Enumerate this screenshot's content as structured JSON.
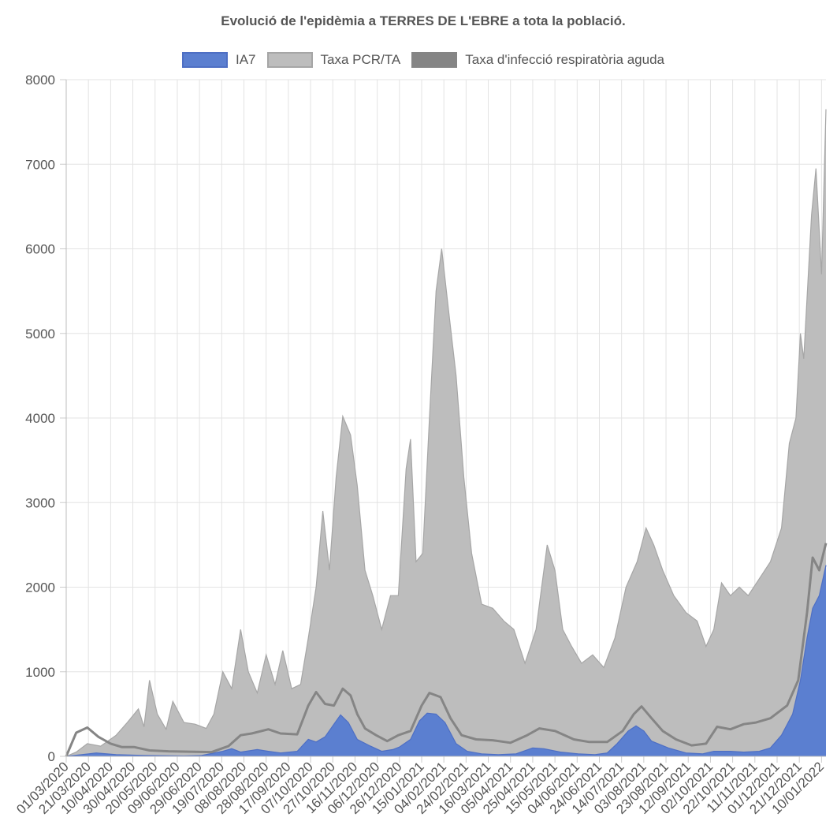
{
  "chart_data": {
    "type": "area",
    "title": "Evolució de l'epidèmia a TERRES DE L'EBRE a tota la població.",
    "xlabel": "",
    "ylabel": "",
    "ylim": [
      0,
      8000
    ],
    "y_ticks": [
      0,
      1000,
      2000,
      3000,
      4000,
      5000,
      6000,
      7000,
      8000
    ],
    "x_tick_labels": [
      "01/03/2020",
      "21/03/2020",
      "10/04/2020",
      "30/04/2020",
      "20/05/2020",
      "09/06/2020",
      "29/06/2020",
      "19/07/2020",
      "08/08/2020",
      "28/08/2020",
      "17/09/2020",
      "07/10/2020",
      "27/10/2020",
      "16/11/2020",
      "06/12/2020",
      "26/12/2020",
      "15/01/2021",
      "04/02/2021",
      "24/02/2021",
      "16/03/2021",
      "05/04/2021",
      "25/04/2021",
      "15/05/2021",
      "04/06/2021",
      "24/06/2021",
      "14/07/2021",
      "03/08/2021",
      "23/08/2021",
      "12/09/2021",
      "02/10/2021",
      "22/10/2021",
      "11/11/2021",
      "01/12/2021",
      "21/12/2021",
      "10/01/2022"
    ],
    "x_start": "2020-03-01",
    "x_end": "2022-01-14",
    "grid": true,
    "legend_position": "top",
    "series": [
      {
        "name": "IA7",
        "kind": "filled-area",
        "fill": "#5b7fd0",
        "stroke": "#4e6fc4",
        "points": [
          [
            "2020-03-01",
            0
          ],
          [
            "2020-03-15",
            20
          ],
          [
            "2020-03-28",
            40
          ],
          [
            "2020-04-15",
            20
          ],
          [
            "2020-05-10",
            10
          ],
          [
            "2020-06-15",
            5
          ],
          [
            "2020-07-01",
            10
          ],
          [
            "2020-07-20",
            60
          ],
          [
            "2020-07-28",
            90
          ],
          [
            "2020-08-05",
            50
          ],
          [
            "2020-08-20",
            80
          ],
          [
            "2020-08-30",
            60
          ],
          [
            "2020-09-10",
            40
          ],
          [
            "2020-09-25",
            60
          ],
          [
            "2020-10-05",
            200
          ],
          [
            "2020-10-12",
            170
          ],
          [
            "2020-10-20",
            230
          ],
          [
            "2020-10-28",
            380
          ],
          [
            "2020-11-03",
            490
          ],
          [
            "2020-11-10",
            400
          ],
          [
            "2020-11-18",
            200
          ],
          [
            "2020-11-30",
            120
          ],
          [
            "2020-12-10",
            60
          ],
          [
            "2020-12-20",
            80
          ],
          [
            "2020-12-26",
            110
          ],
          [
            "2021-01-05",
            200
          ],
          [
            "2021-01-13",
            420
          ],
          [
            "2021-01-20",
            510
          ],
          [
            "2021-01-28",
            500
          ],
          [
            "2021-02-05",
            400
          ],
          [
            "2021-02-15",
            150
          ],
          [
            "2021-02-25",
            60
          ],
          [
            "2021-03-10",
            30
          ],
          [
            "2021-03-25",
            20
          ],
          [
            "2021-04-10",
            30
          ],
          [
            "2021-04-25",
            100
          ],
          [
            "2021-05-05",
            90
          ],
          [
            "2021-05-20",
            50
          ],
          [
            "2021-06-05",
            30
          ],
          [
            "2021-06-20",
            20
          ],
          [
            "2021-07-01",
            40
          ],
          [
            "2021-07-10",
            150
          ],
          [
            "2021-07-20",
            300
          ],
          [
            "2021-07-27",
            360
          ],
          [
            "2021-08-03",
            300
          ],
          [
            "2021-08-10",
            180
          ],
          [
            "2021-08-25",
            100
          ],
          [
            "2021-09-10",
            40
          ],
          [
            "2021-09-25",
            30
          ],
          [
            "2021-10-05",
            60
          ],
          [
            "2021-10-20",
            60
          ],
          [
            "2021-11-01",
            50
          ],
          [
            "2021-11-15",
            60
          ],
          [
            "2021-11-25",
            100
          ],
          [
            "2021-12-05",
            250
          ],
          [
            "2021-12-15",
            500
          ],
          [
            "2021-12-22",
            900
          ],
          [
            "2021-12-28",
            1400
          ],
          [
            "2022-01-02",
            1750
          ],
          [
            "2022-01-08",
            1900
          ],
          [
            "2022-01-14",
            2260
          ]
        ]
      },
      {
        "name": "Taxa PCR/TA",
        "kind": "filled-area",
        "fill": "#bdbdbd",
        "stroke": "#a6a6a6",
        "points": [
          [
            "2020-03-01",
            0
          ],
          [
            "2020-03-10",
            50
          ],
          [
            "2020-03-20",
            150
          ],
          [
            "2020-04-01",
            120
          ],
          [
            "2020-04-15",
            250
          ],
          [
            "2020-04-25",
            400
          ],
          [
            "2020-05-05",
            560
          ],
          [
            "2020-05-10",
            350
          ],
          [
            "2020-05-15",
            900
          ],
          [
            "2020-05-22",
            500
          ],
          [
            "2020-05-30",
            320
          ],
          [
            "2020-06-05",
            650
          ],
          [
            "2020-06-15",
            400
          ],
          [
            "2020-06-25",
            380
          ],
          [
            "2020-07-05",
            330
          ],
          [
            "2020-07-12",
            500
          ],
          [
            "2020-07-20",
            1000
          ],
          [
            "2020-07-28",
            800
          ],
          [
            "2020-08-05",
            1500
          ],
          [
            "2020-08-12",
            1000
          ],
          [
            "2020-08-20",
            750
          ],
          [
            "2020-08-28",
            1200
          ],
          [
            "2020-09-05",
            850
          ],
          [
            "2020-09-12",
            1250
          ],
          [
            "2020-09-20",
            800
          ],
          [
            "2020-09-28",
            850
          ],
          [
            "2020-10-05",
            1400
          ],
          [
            "2020-10-12",
            2000
          ],
          [
            "2020-10-18",
            2900
          ],
          [
            "2020-10-24",
            2200
          ],
          [
            "2020-10-30",
            3300
          ],
          [
            "2020-11-05",
            4020
          ],
          [
            "2020-11-12",
            3800
          ],
          [
            "2020-11-18",
            3200
          ],
          [
            "2020-11-25",
            2200
          ],
          [
            "2020-12-02",
            1900
          ],
          [
            "2020-12-10",
            1500
          ],
          [
            "2020-12-18",
            1900
          ],
          [
            "2020-12-25",
            1900
          ],
          [
            "2021-01-01",
            3400
          ],
          [
            "2021-01-05",
            3750
          ],
          [
            "2021-01-10",
            2300
          ],
          [
            "2021-01-16",
            2400
          ],
          [
            "2021-01-22",
            4000
          ],
          [
            "2021-01-28",
            5500
          ],
          [
            "2021-02-02",
            6000
          ],
          [
            "2021-02-08",
            5300
          ],
          [
            "2021-02-15",
            4500
          ],
          [
            "2021-02-22",
            3300
          ],
          [
            "2021-03-01",
            2400
          ],
          [
            "2021-03-10",
            1800
          ],
          [
            "2021-03-20",
            1750
          ],
          [
            "2021-03-30",
            1600
          ],
          [
            "2021-04-08",
            1500
          ],
          [
            "2021-04-18",
            1100
          ],
          [
            "2021-04-28",
            1500
          ],
          [
            "2021-05-08",
            2500
          ],
          [
            "2021-05-15",
            2200
          ],
          [
            "2021-05-22",
            1500
          ],
          [
            "2021-05-30",
            1300
          ],
          [
            "2021-06-08",
            1100
          ],
          [
            "2021-06-18",
            1200
          ],
          [
            "2021-06-28",
            1050
          ],
          [
            "2021-07-08",
            1400
          ],
          [
            "2021-07-18",
            2000
          ],
          [
            "2021-07-28",
            2300
          ],
          [
            "2021-08-05",
            2700
          ],
          [
            "2021-08-12",
            2500
          ],
          [
            "2021-08-20",
            2200
          ],
          [
            "2021-08-30",
            1900
          ],
          [
            "2021-09-10",
            1700
          ],
          [
            "2021-09-20",
            1600
          ],
          [
            "2021-09-28",
            1300
          ],
          [
            "2021-10-05",
            1500
          ],
          [
            "2021-10-12",
            2050
          ],
          [
            "2021-10-20",
            1900
          ],
          [
            "2021-10-28",
            2000
          ],
          [
            "2021-11-05",
            1900
          ],
          [
            "2021-11-15",
            2100
          ],
          [
            "2021-11-25",
            2300
          ],
          [
            "2021-12-05",
            2700
          ],
          [
            "2021-12-12",
            3700
          ],
          [
            "2021-12-18",
            4000
          ],
          [
            "2021-12-22",
            5000
          ],
          [
            "2021-12-25",
            4700
          ],
          [
            "2022-01-01",
            6400
          ],
          [
            "2022-01-05",
            6950
          ],
          [
            "2022-01-10",
            5700
          ],
          [
            "2022-01-14",
            7650
          ]
        ]
      },
      {
        "name": "Taxa d'infecció respiratòria aguda",
        "kind": "line",
        "stroke": "#858585",
        "legend_fill": "#858585",
        "points": [
          [
            "2020-03-01",
            0
          ],
          [
            "2020-03-10",
            280
          ],
          [
            "2020-03-20",
            340
          ],
          [
            "2020-03-30",
            230
          ],
          [
            "2020-04-10",
            150
          ],
          [
            "2020-04-20",
            110
          ],
          [
            "2020-05-01",
            110
          ],
          [
            "2020-05-15",
            70
          ],
          [
            "2020-06-01",
            60
          ],
          [
            "2020-06-20",
            55
          ],
          [
            "2020-07-10",
            50
          ],
          [
            "2020-07-25",
            120
          ],
          [
            "2020-08-05",
            250
          ],
          [
            "2020-08-15",
            270
          ],
          [
            "2020-08-30",
            320
          ],
          [
            "2020-09-10",
            270
          ],
          [
            "2020-09-25",
            260
          ],
          [
            "2020-10-05",
            600
          ],
          [
            "2020-10-12",
            760
          ],
          [
            "2020-10-20",
            620
          ],
          [
            "2020-10-28",
            600
          ],
          [
            "2020-11-05",
            800
          ],
          [
            "2020-11-12",
            720
          ],
          [
            "2020-11-18",
            500
          ],
          [
            "2020-11-25",
            330
          ],
          [
            "2020-12-05",
            250
          ],
          [
            "2020-12-15",
            180
          ],
          [
            "2020-12-25",
            250
          ],
          [
            "2021-01-05",
            300
          ],
          [
            "2021-01-15",
            600
          ],
          [
            "2021-01-22",
            750
          ],
          [
            "2021-02-01",
            700
          ],
          [
            "2021-02-10",
            450
          ],
          [
            "2021-02-20",
            250
          ],
          [
            "2021-03-05",
            200
          ],
          [
            "2021-03-20",
            190
          ],
          [
            "2021-04-05",
            160
          ],
          [
            "2021-04-20",
            250
          ],
          [
            "2021-05-01",
            330
          ],
          [
            "2021-05-15",
            300
          ],
          [
            "2021-06-01",
            200
          ],
          [
            "2021-06-15",
            170
          ],
          [
            "2021-07-01",
            170
          ],
          [
            "2021-07-15",
            300
          ],
          [
            "2021-07-25",
            500
          ],
          [
            "2021-08-01",
            590
          ],
          [
            "2021-08-10",
            450
          ],
          [
            "2021-08-20",
            300
          ],
          [
            "2021-09-01",
            200
          ],
          [
            "2021-09-15",
            130
          ],
          [
            "2021-09-28",
            150
          ],
          [
            "2021-10-08",
            350
          ],
          [
            "2021-10-20",
            320
          ],
          [
            "2021-11-01",
            380
          ],
          [
            "2021-11-12",
            400
          ],
          [
            "2021-11-25",
            450
          ],
          [
            "2021-12-10",
            600
          ],
          [
            "2021-12-20",
            900
          ],
          [
            "2021-12-28",
            1700
          ],
          [
            "2022-01-02",
            2350
          ],
          [
            "2022-01-08",
            2200
          ],
          [
            "2022-01-14",
            2520
          ]
        ]
      }
    ]
  }
}
